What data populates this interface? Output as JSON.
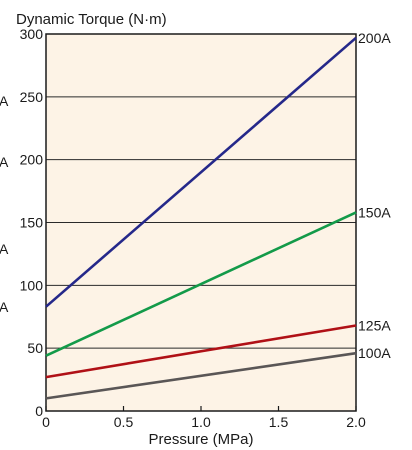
{
  "chart_data": {
    "type": "line",
    "title": "Dynamic Torque (N·m)",
    "xlabel": "Pressure (MPa)",
    "ylabel": "",
    "xlim": [
      0,
      2.0
    ],
    "ylim": [
      0,
      300
    ],
    "x_ticks": [
      "0",
      "0.5",
      "1.0",
      "1.5",
      "2.0"
    ],
    "y_ticks": [
      "0",
      "50",
      "100",
      "150",
      "200",
      "250",
      "300"
    ],
    "grid": "horizontal",
    "background_color": "#fdf3e6",
    "series": [
      {
        "name": "200A",
        "color": "#25288a",
        "x": [
          0,
          2.0
        ],
        "y": [
          83,
          297
        ]
      },
      {
        "name": "150A",
        "color": "#139a49",
        "x": [
          0,
          2.0
        ],
        "y": [
          44,
          158
        ]
      },
      {
        "name": "125A",
        "color": "#b01016",
        "x": [
          0,
          2.0
        ],
        "y": [
          27,
          68
        ]
      },
      {
        "name": "100A",
        "color": "#5a5656",
        "x": [
          0,
          2.0
        ],
        "y": [
          10,
          46
        ]
      }
    ],
    "left_edge_labels": [
      "A",
      "A",
      "A",
      "A"
    ]
  }
}
